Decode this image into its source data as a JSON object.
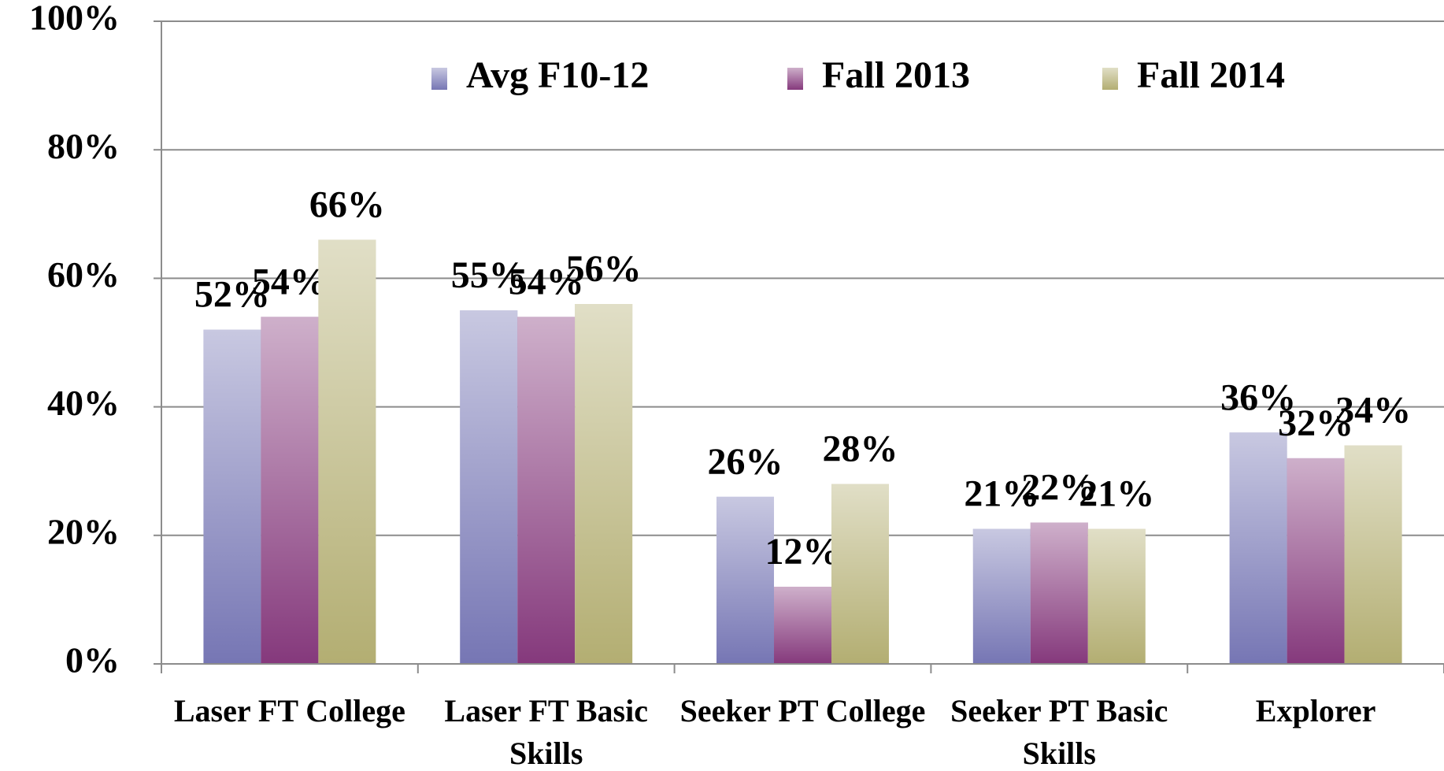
{
  "chart_data": {
    "type": "bar",
    "categories": [
      "Laser FT College",
      "Laser FT Basic Skills",
      "Seeker PT College",
      "Seeker PT Basic Skills",
      "Explorer"
    ],
    "series": [
      {
        "name": "Avg F10-12",
        "color": "#7676b4",
        "values": [
          52,
          55,
          26,
          21,
          36
        ],
        "value_labels": [
          "52%",
          "55%",
          "26%",
          "21%",
          "36%"
        ]
      },
      {
        "name": "Fall 2013",
        "color": "#85397c",
        "values": [
          54,
          54,
          12,
          22,
          32
        ],
        "value_labels": [
          "54%",
          "54%",
          "12%",
          "22%",
          "32%"
        ]
      },
      {
        "name": "Fall 2014",
        "color": "#b3ae72",
        "values": [
          66,
          56,
          28,
          21,
          34
        ],
        "value_labels": [
          "66%",
          "56%",
          "28%",
          "21%",
          "34%"
        ]
      }
    ],
    "ylim": [
      0,
      100
    ],
    "yticks": [
      {
        "value": 0,
        "label": "0%"
      },
      {
        "value": 20,
        "label": "20%"
      },
      {
        "value": 40,
        "label": "40%"
      },
      {
        "value": 60,
        "label": "60%"
      },
      {
        "value": 80,
        "label": "80%"
      },
      {
        "value": 100,
        "label": "100%"
      }
    ],
    "grid": true,
    "legend": "top"
  }
}
